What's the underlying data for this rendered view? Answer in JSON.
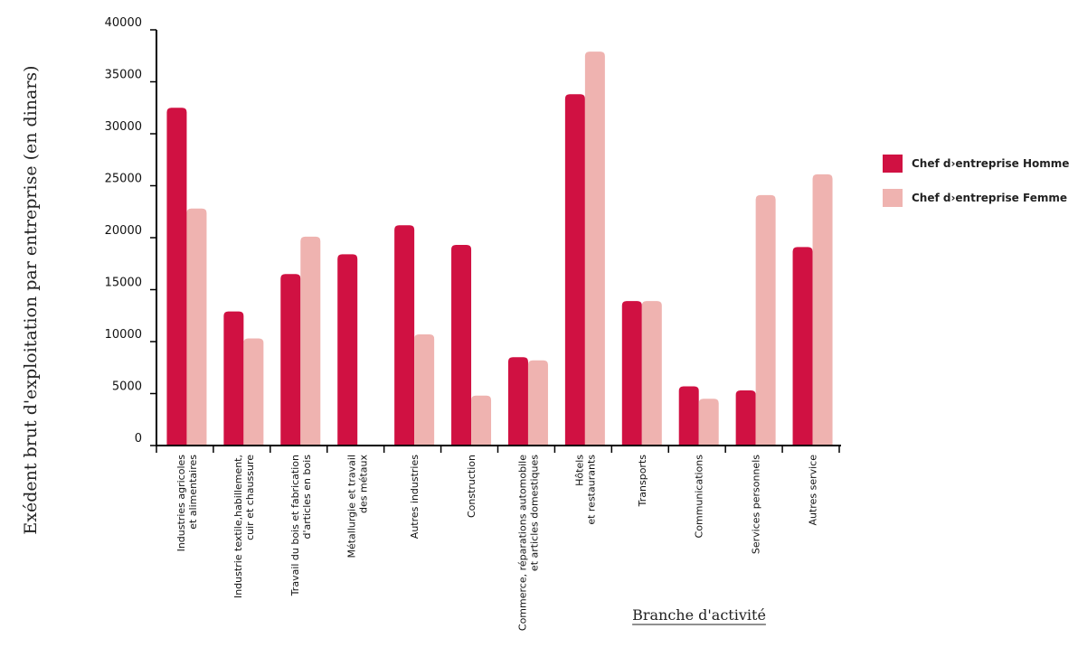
{
  "chart_data": {
    "type": "bar",
    "title": "",
    "xlabel": "Branche d'activité",
    "ylabel": "Exédent brut d'exploitation par entreprise (en dinars)",
    "ylim": [
      0,
      40000
    ],
    "yticks": [
      0,
      5000,
      10000,
      15000,
      20000,
      25000,
      30000,
      35000,
      40000
    ],
    "grid": false,
    "legend_position": "right",
    "categories": [
      "Industries agricoles\net alimentaires",
      "Industrie textile,habillement,\ncuir et chaussure",
      "Travail du bois et fabrication\nd'articles en bois",
      "Métallurgie et travail\ndes métaux",
      "Autres industries",
      "Construction",
      "Commerce, réparations automobile\net articles domestiques",
      "Hôtels\net restaurants",
      "Transports",
      "Communications",
      "Services personnels",
      "Autres service"
    ],
    "series": [
      {
        "name": "Chef d›entreprise Homme",
        "color": "#d01142",
        "values": [
          32500,
          12900,
          16500,
          18400,
          21200,
          19300,
          8500,
          33800,
          13900,
          5700,
          5300,
          19100
        ]
      },
      {
        "name": "Chef d›entreprise Femme",
        "color": "#efb3b0",
        "values": [
          22800,
          10300,
          20100,
          0,
          10700,
          4800,
          8200,
          37900,
          13900,
          4500,
          24100,
          26100
        ]
      }
    ]
  }
}
